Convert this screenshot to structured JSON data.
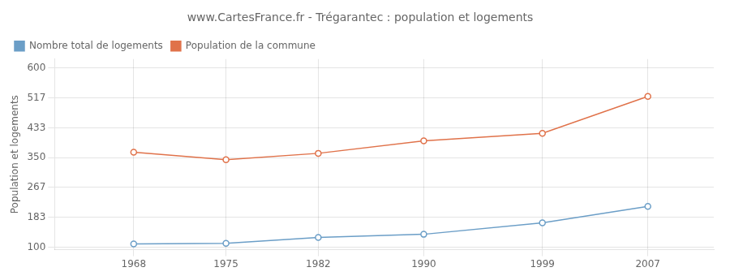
{
  "chart_data": {
    "type": "line",
    "title": "www.CartesFrance.fr - Trégarantec : population et logements",
    "ylabel": "Population et logements",
    "x": [
      1968,
      1975,
      1982,
      1990,
      1999,
      2007
    ],
    "series": [
      {
        "name": "Nombre total de logements",
        "color": "#6b9ec7",
        "values": [
          109,
          111,
          127,
          136,
          168,
          214
        ]
      },
      {
        "name": "Population de la commune",
        "color": "#e0724a",
        "values": [
          365,
          344,
          362,
          397,
          418,
          521
        ]
      }
    ],
    "xlim": [
      1962,
      2012
    ],
    "xticks": [
      1968,
      1975,
      1982,
      1990,
      1999,
      2007
    ],
    "ylim": [
      93,
      625
    ],
    "yticks": [
      100,
      183,
      267,
      350,
      433,
      517,
      600
    ],
    "grid": true,
    "legend": "upper left",
    "marker": "circle"
  }
}
